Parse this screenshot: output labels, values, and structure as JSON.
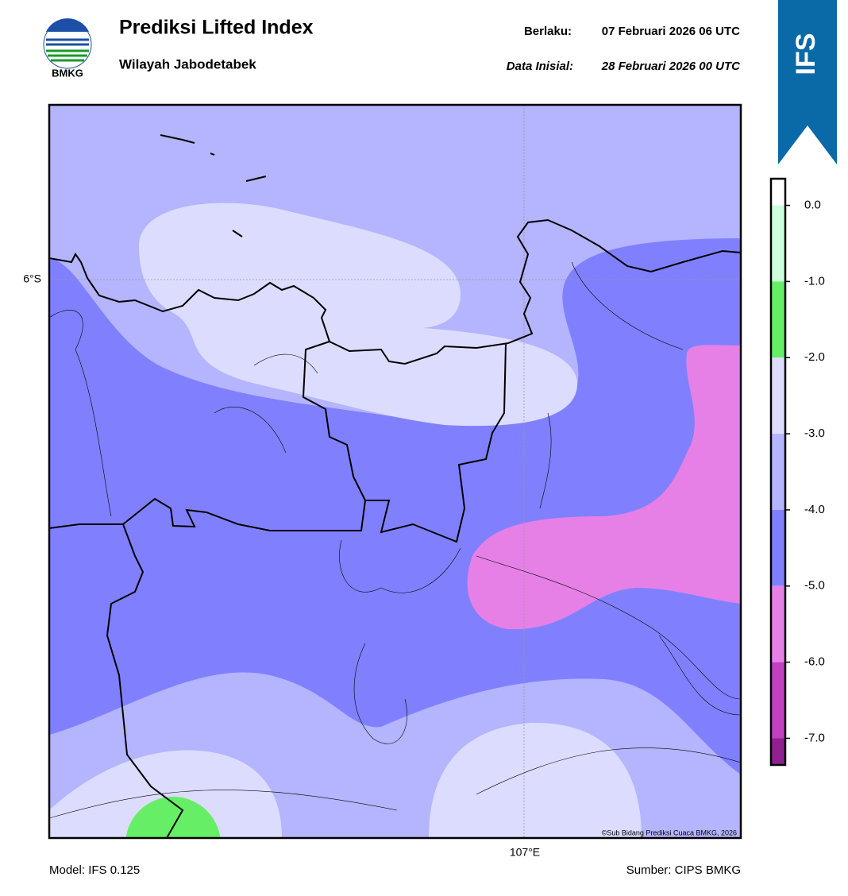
{
  "header": {
    "logo_text": "BMKG",
    "title": "Prediksi Lifted Index",
    "subtitle": "Wilayah Jabodetabek",
    "valid_label": "Berlaku:",
    "valid_value": "07 Februari 2026 06 UTC",
    "init_label": "Data Inisial:",
    "init_value": "28 Februari 2026 00 UTC",
    "badge": "IFS"
  },
  "map": {
    "lat_label": "6°S",
    "lon_label": "107°E",
    "credit": "©Sub Bidang Prediksi Cuaca BMKG, 2026"
  },
  "colorbar": {
    "lim": [
      0.35,
      -7.35
    ],
    "ticks": [
      {
        "value": 0,
        "label": "0.0"
      },
      {
        "value": -1,
        "label": "-1.0"
      },
      {
        "value": -2,
        "label": "-2.0"
      },
      {
        "value": -3,
        "label": "-3.0"
      },
      {
        "value": -4,
        "label": "-4.0"
      },
      {
        "value": -5,
        "label": "-5.0"
      },
      {
        "value": -6,
        "label": "-6.0"
      },
      {
        "value": -7,
        "label": "-7.0"
      }
    ],
    "colors": [
      "#ffffff",
      "#ccffdd",
      "#66ee66",
      "#dcdcff",
      "#b4b4ff",
      "#8080ff",
      "#e680e6",
      "#c040c0",
      "#902090"
    ]
  },
  "footer": {
    "model": "Model: IFS 0.125",
    "source": "Sumber: CIPS BMKG"
  }
}
